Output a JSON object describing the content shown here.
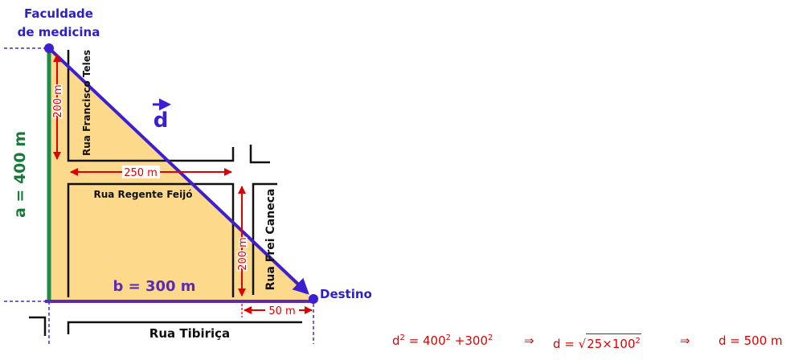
{
  "labels": {
    "origin_line1": "Faculdade",
    "origin_line2": "de medicina",
    "destination": "Destino",
    "vector": "d",
    "side_a": "a = 400 m",
    "side_b": "b = 300 m",
    "street_francisco": "Rua Francisco Teles",
    "street_regente": "Rua Regente Feijó",
    "street_frei": "Rua Frei Caneca",
    "street_tibirica": "Rua Tibiriça",
    "dim_200_top": "200 m",
    "dim_250": "250 m",
    "dim_200_right": "200 m",
    "dim_50": "50 m"
  },
  "formula": {
    "part1_base": "d",
    "part1_exp": "2",
    "part1_eq": " = 400",
    "part1_exp2": "2",
    "part1_plus": " +300",
    "part1_exp3": "2",
    "arrow1": "⇒",
    "part2_lhs": "d = ",
    "part2_sqrt": "√",
    "part2_radicand": "25×100",
    "part2_exp": "2",
    "arrow2": "⇒",
    "part3": "d = 500 m"
  },
  "colors": {
    "fill": "#fcd98b",
    "vector": "#3b1fd0",
    "dimension": "#e00000",
    "side_a": "#1a7a3a",
    "side_b": "#5a2bb8",
    "label_blue": "#2d1fc8"
  }
}
